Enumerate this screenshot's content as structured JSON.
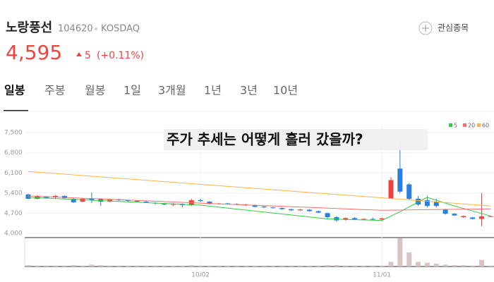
{
  "header": {
    "name": "노랑풍선",
    "code": "104620",
    "market": "KOSDAQ",
    "watch": "관심종목",
    "price": "4,595",
    "change": "5",
    "change_pct": "(+0.11%)"
  },
  "tabs": [
    "일봉",
    "주봉",
    "월봉",
    "1일",
    "3개월",
    "1년",
    "3년",
    "10년"
  ],
  "overlay": "주가 추세는 어떻게 흘러 갔을까?",
  "chart_data": {
    "type": "candlestick",
    "categories": [
      null,
      null,
      null,
      null,
      null,
      null,
      null,
      null,
      null,
      null,
      null,
      null,
      null,
      null,
      null,
      null,
      null,
      null,
      null,
      "10/02",
      null,
      null,
      null,
      null,
      null,
      null,
      null,
      null,
      null,
      null,
      null,
      null,
      null,
      null,
      null,
      null,
      null,
      null,
      null,
      "11/01",
      null,
      null,
      null,
      null,
      null,
      null,
      null,
      null,
      null,
      null,
      null,
      null
    ],
    "open": [
      5350,
      5200,
      5280,
      5250,
      5300,
      5200,
      5100,
      5200,
      5200,
      5100,
      5180,
      5150,
      5130,
      5100,
      5060,
      5040,
      5000,
      5020,
      4980,
      5150,
      5100,
      5030,
      5040,
      5020,
      5000,
      4980,
      4930,
      4900,
      4880,
      4840,
      4800,
      4820,
      4770,
      4700,
      4560,
      4470,
      4530,
      4490,
      4500,
      4480,
      5200,
      6250,
      5700,
      5200,
      5150,
      5100,
      4820,
      4680,
      4560,
      4550,
      4500,
      4590
    ],
    "high": [
      5380,
      5330,
      5300,
      5330,
      5320,
      5230,
      5230,
      5420,
      5220,
      5180,
      5200,
      5170,
      5150,
      5120,
      5080,
      5060,
      5050,
      5040,
      5200,
      5200,
      5120,
      5060,
      5060,
      5040,
      5020,
      5000,
      4950,
      4920,
      4900,
      4860,
      4850,
      4840,
      4790,
      4720,
      4600,
      4550,
      4560,
      4520,
      4550,
      4550,
      5950,
      7100,
      5750,
      5300,
      5300,
      5200,
      4850,
      4700,
      4620,
      4570,
      5400,
      4610
    ],
    "low": [
      5180,
      5180,
      5200,
      5220,
      5200,
      5050,
      5080,
      5050,
      4950,
      5080,
      5130,
      5100,
      5080,
      5050,
      5000,
      4980,
      4950,
      4900,
      4950,
      5100,
      5000,
      5000,
      5000,
      4980,
      4950,
      4900,
      4880,
      4860,
      4820,
      4780,
      4790,
      4760,
      4700,
      4520,
      4400,
      4440,
      4460,
      4450,
      4460,
      4420,
      5200,
      5400,
      5150,
      4950,
      4900,
      4900,
      4650,
      4600,
      4540,
      4480,
      4250,
      4570
    ],
    "close": [
      5200,
      5300,
      5230,
      5300,
      5220,
      5080,
      5200,
      5150,
      5100,
      5170,
      5150,
      5130,
      5100,
      5060,
      5040,
      5000,
      5020,
      4980,
      5150,
      5120,
      5020,
      5040,
      5020,
      5000,
      4970,
      4920,
      4900,
      4880,
      4840,
      4800,
      4830,
      4770,
      4720,
      4560,
      4450,
      4530,
      4480,
      4500,
      4490,
      4520,
      5850,
      5450,
      5200,
      5000,
      4950,
      4950,
      4680,
      4620,
      4600,
      4500,
      4590,
      4595
    ],
    "volume": [
      3,
      2,
      2,
      2,
      2,
      3,
      2,
      4,
      3,
      2,
      2,
      2,
      2,
      2,
      2,
      2,
      2,
      2,
      3,
      2,
      2,
      2,
      2,
      2,
      2,
      2,
      2,
      2,
      2,
      2,
      2,
      2,
      2,
      3,
      3,
      2,
      2,
      2,
      2,
      2,
      10,
      60,
      30,
      10,
      8,
      6,
      4,
      3,
      3,
      2,
      14,
      2
    ],
    "up_color": "#f0433f",
    "down_color": "#2a7de1",
    "ylim": [
      3900,
      7700
    ],
    "yticks": [
      {
        "value": 4000,
        "label": "4,000"
      },
      {
        "value": 4700,
        "label": "4,700"
      },
      {
        "value": 5400,
        "label": "5,400"
      },
      {
        "value": 6100,
        "label": "6,100"
      },
      {
        "value": 6800,
        "label": "6,800"
      },
      {
        "value": 7500,
        "label": "7,500"
      }
    ],
    "grid": true,
    "legend": "top-right",
    "series": [
      {
        "name": "5",
        "color": "#2ecc40",
        "x": [
          0,
          19,
          33,
          39,
          41,
          44,
          47,
          51
        ],
        "values": [
          5250,
          4980,
          4500,
          4450,
          4750,
          5250,
          4950,
          4600
        ]
      },
      {
        "name": "20",
        "color": "#ff6b6b",
        "x": [
          0,
          19,
          39,
          51
        ],
        "values": [
          5300,
          5050,
          4800,
          4850
        ]
      },
      {
        "name": "60",
        "color": "#ffb347",
        "x": [
          0,
          51
        ],
        "values": [
          6150,
          4950
        ]
      }
    ]
  }
}
